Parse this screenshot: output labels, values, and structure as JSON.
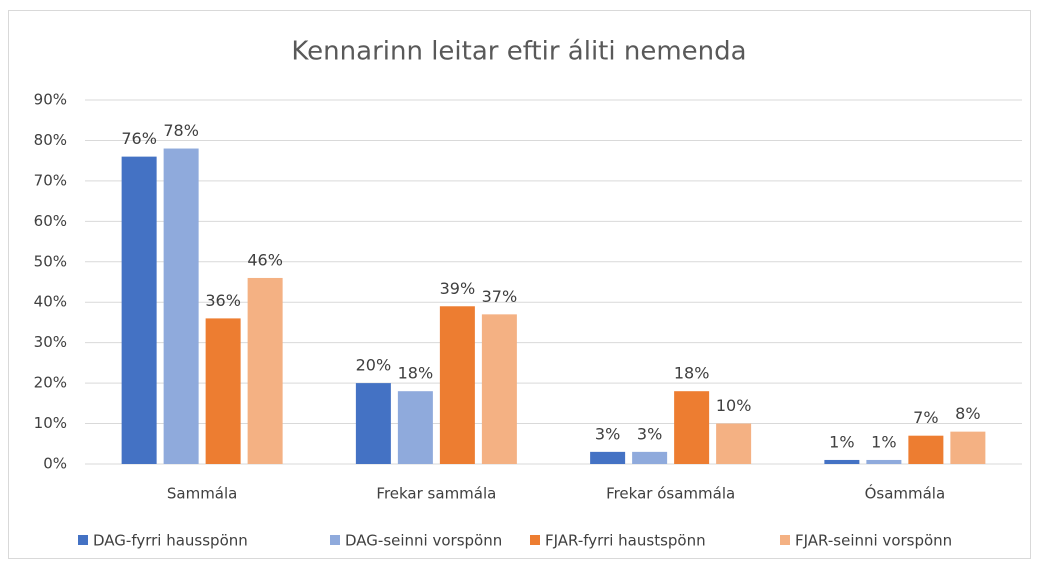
{
  "chart_data": {
    "type": "bar",
    "title": "Kennarinn leitar eftir áliti nemenda",
    "categories": [
      "Sammála",
      "Frekar sammála",
      "Frekar ósammála",
      "Ósammála"
    ],
    "series": [
      {
        "name": "DAG-fyrri hausspönn",
        "color": "#4472c4",
        "values": [
          76,
          20,
          3,
          1
        ],
        "value_labels": [
          "76%",
          "20%",
          "3%",
          "1%"
        ]
      },
      {
        "name": "DAG-seinni vorspönn",
        "color": "#8faadc",
        "values": [
          78,
          18,
          3,
          1
        ],
        "value_labels": [
          "78%",
          "18%",
          "3%",
          "1%"
        ]
      },
      {
        "name": "FJAR-fyrri haustspönn",
        "color": "#ed7d31",
        "values": [
          36,
          39,
          18,
          7
        ],
        "value_labels": [
          "36%",
          "39%",
          "18%",
          "7%"
        ]
      },
      {
        "name": "FJAR-seinni vorspönn",
        "color": "#f4b183",
        "values": [
          46,
          37,
          10,
          8
        ],
        "value_labels": [
          "46%",
          "37%",
          "10%",
          "8%"
        ]
      }
    ],
    "ylim": [
      0,
      90
    ],
    "yticks": [
      {
        "value": 0,
        "label": "0%"
      },
      {
        "value": 10,
        "label": "10%"
      },
      {
        "value": 20,
        "label": "20%"
      },
      {
        "value": 30,
        "label": "30%"
      },
      {
        "value": 40,
        "label": "40%"
      },
      {
        "value": 50,
        "label": "50%"
      },
      {
        "value": 60,
        "label": "60%"
      },
      {
        "value": 70,
        "label": "70%"
      },
      {
        "value": 80,
        "label": "80%"
      },
      {
        "value": 90,
        "label": "90%"
      }
    ],
    "grid": true,
    "legend": "bottom"
  }
}
